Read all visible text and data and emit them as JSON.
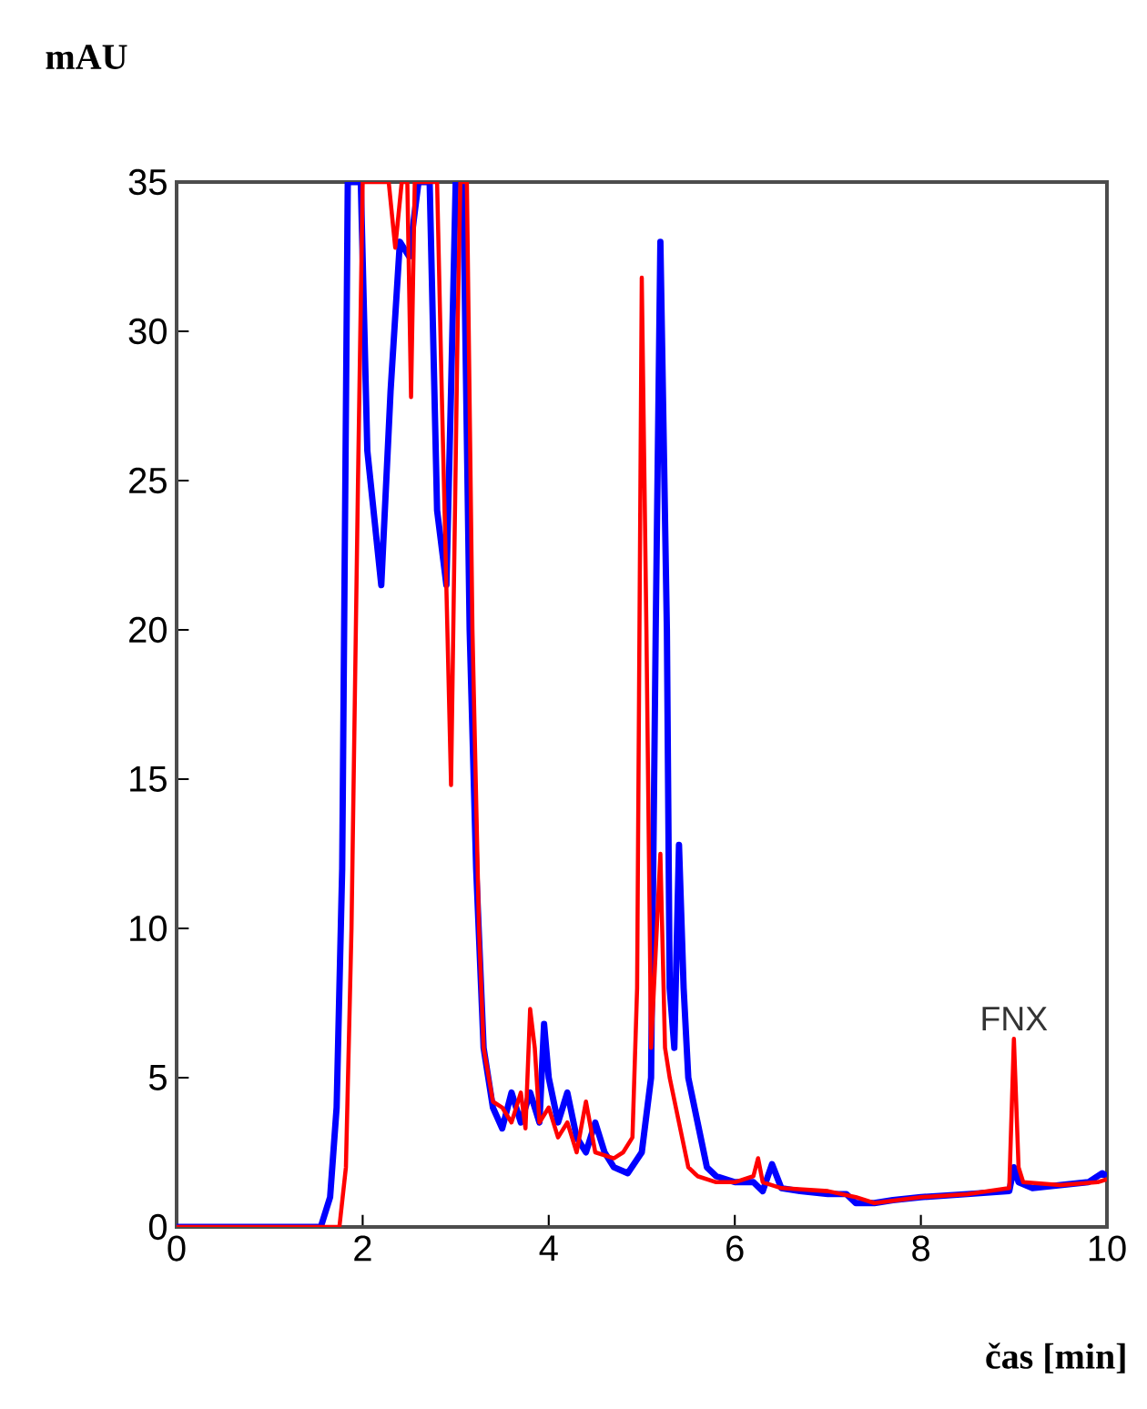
{
  "chart_data": {
    "type": "line",
    "xlabel": "čas [min]",
    "ylabel": "mAU",
    "xlim": [
      0,
      10
    ],
    "ylim": [
      0,
      35
    ],
    "xticks": [
      0,
      2,
      4,
      6,
      8,
      10
    ],
    "yticks": [
      0,
      5,
      10,
      15,
      20,
      25,
      30,
      35
    ],
    "annotations": [
      {
        "text": "FNX",
        "x": 9,
        "y": 6.3
      }
    ],
    "series": [
      {
        "color": "#0000ff",
        "x": [
          0,
          1.55,
          1.65,
          1.72,
          1.78,
          1.84,
          1.98,
          2.05,
          2.2,
          2.3,
          2.4,
          2.5,
          2.6,
          2.72,
          2.8,
          2.9,
          2.95,
          3.0,
          3.08,
          3.15,
          3.22,
          3.3,
          3.4,
          3.5,
          3.6,
          3.7,
          3.8,
          3.9,
          3.95,
          4.0,
          4.1,
          4.2,
          4.3,
          4.4,
          4.5,
          4.6,
          4.7,
          4.85,
          5.0,
          5.1,
          5.15,
          5.2,
          5.27,
          5.3,
          5.35,
          5.4,
          5.45,
          5.5,
          5.6,
          5.7,
          5.8,
          6.0,
          6.2,
          6.3,
          6.4,
          6.5,
          6.7,
          7.0,
          7.2,
          7.3,
          7.5,
          7.7,
          8.0,
          8.5,
          8.95,
          9.0,
          9.05,
          9.2,
          9.5,
          9.8,
          9.95,
          10
        ],
        "values": [
          0,
          0,
          1,
          4,
          12,
          35,
          35,
          26,
          21.5,
          28,
          33,
          32.5,
          35,
          35,
          24,
          21.5,
          28,
          35,
          35,
          20,
          12,
          6,
          4,
          3.3,
          4.5,
          3.5,
          4.5,
          3.5,
          6.8,
          5,
          3.5,
          4.5,
          3,
          2.5,
          3.5,
          2.5,
          2,
          1.8,
          2.5,
          5,
          20,
          33,
          20,
          8,
          6,
          12.8,
          8,
          5,
          3.5,
          2,
          1.7,
          1.5,
          1.5,
          1.2,
          2.1,
          1.3,
          1.2,
          1.1,
          1.1,
          0.8,
          0.8,
          0.9,
          1.0,
          1.1,
          1.2,
          2,
          1.5,
          1.3,
          1.4,
          1.5,
          1.8,
          1.7
        ]
      },
      {
        "color": "#ff0000",
        "x": [
          0,
          1.75,
          1.82,
          1.88,
          1.95,
          2.0,
          2.28,
          2.35,
          2.42,
          2.48,
          2.52,
          2.56,
          2.8,
          2.85,
          2.95,
          3.02,
          3.05,
          3.12,
          3.18,
          3.25,
          3.3,
          3.4,
          3.5,
          3.6,
          3.7,
          3.75,
          3.8,
          3.85,
          3.9,
          4.0,
          4.1,
          4.2,
          4.3,
          4.4,
          4.5,
          4.7,
          4.8,
          4.9,
          4.95,
          5.0,
          5.05,
          5.1,
          5.2,
          5.25,
          5.3,
          5.4,
          5.5,
          5.6,
          5.8,
          6.0,
          6.2,
          6.25,
          6.3,
          6.5,
          7.0,
          7.3,
          7.5,
          8.0,
          8.5,
          8.95,
          9.0,
          9.05,
          9.1,
          9.5,
          9.9,
          10
        ],
        "values": [
          0,
          0,
          2,
          10,
          25,
          35,
          35,
          32.8,
          35,
          35,
          27.8,
          35,
          35,
          28,
          14.8,
          30,
          35,
          35,
          20,
          10,
          6,
          4.2,
          4,
          3.5,
          4.5,
          3.3,
          7.3,
          6,
          3.5,
          4,
          3,
          3.5,
          2.5,
          4.2,
          2.5,
          2.3,
          2.5,
          3,
          8,
          31.8,
          20,
          6,
          12.5,
          6,
          5,
          3.5,
          2,
          1.7,
          1.5,
          1.5,
          1.7,
          2.3,
          1.5,
          1.3,
          1.2,
          1.0,
          0.8,
          1.0,
          1.1,
          1.3,
          6.3,
          2,
          1.5,
          1.4,
          1.5,
          1.6
        ]
      }
    ]
  }
}
